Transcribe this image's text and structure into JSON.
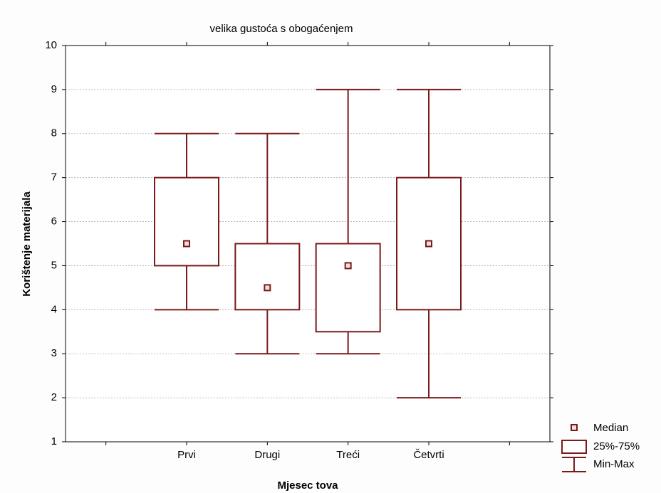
{
  "chart_data": {
    "type": "boxplot",
    "title": "velika gustoća s obogaćenjem",
    "xlabel": "Mjesec tova",
    "ylabel": "Korištenje materijala",
    "categories": [
      null,
      "Prvi",
      "Drugi",
      "Treći",
      "Četvrti",
      null
    ],
    "median": [
      null,
      5.5,
      4.5,
      5,
      5.5,
      null
    ],
    "q1": [
      null,
      5,
      4,
      3.5,
      4,
      null
    ],
    "q3": [
      null,
      7,
      5.5,
      5.5,
      7,
      null
    ],
    "min": [
      null,
      4,
      3,
      3,
      2,
      null
    ],
    "max": [
      null,
      8,
      8,
      9,
      9,
      null
    ],
    "legend": [
      "Median",
      "25%-75%",
      "Min-Max"
    ],
    "color": "#7b1a1a",
    "ylim": [
      1,
      10
    ],
    "yticks": [
      1,
      2,
      3,
      4,
      5,
      6,
      7,
      8,
      9,
      10
    ],
    "grid": true
  }
}
